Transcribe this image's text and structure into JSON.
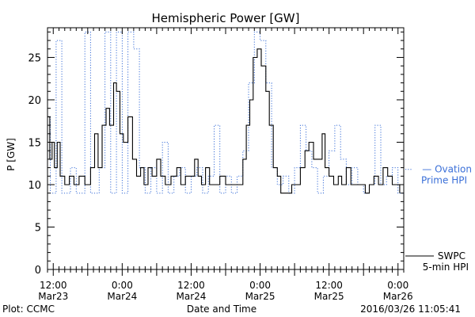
{
  "footer": {
    "plot_credit": "Plot: CCMC",
    "timestamp": "2016/03/26 11:05:41"
  },
  "chart_data": {
    "type": "line",
    "title": "Hemispheric Power [GW]",
    "xlabel": "Date and Time",
    "ylabel": "P [GW]",
    "ylim": [
      0,
      28.5
    ],
    "xlim": [
      -1,
      61
    ],
    "x_unit": "hours since 2016-03-23 12:00 UT",
    "yticks": [
      0,
      5,
      10,
      15,
      20,
      25
    ],
    "xticks": [
      {
        "x": 0,
        "label1": "12:00",
        "label2": "Mar23"
      },
      {
        "x": 12,
        "label1": "0:00",
        "label2": "Mar24"
      },
      {
        "x": 24,
        "label1": "12:00",
        "label2": "Mar24"
      },
      {
        "x": 36,
        "label1": "0:00",
        "label2": "Mar25"
      },
      {
        "x": 48,
        "label1": "12:00",
        "label2": "Mar25"
      },
      {
        "x": 60,
        "label1": "0:00",
        "label2": "Mar26"
      }
    ],
    "grid": false,
    "legend_placement": "right",
    "series": [
      {
        "name": "Ovation Prime HPI",
        "legend_lines": [
          "— Ovation",
          "Prime HPI"
        ],
        "color": "#3a6fd8",
        "style": "dotted",
        "points": [
          [
            -1,
            18
          ],
          [
            -0.5,
            9
          ],
          [
            0.5,
            27
          ],
          [
            1.5,
            9
          ],
          [
            3,
            12
          ],
          [
            4,
            9
          ],
          [
            5.5,
            28
          ],
          [
            6.5,
            9
          ],
          [
            8,
            12
          ],
          [
            9,
            28
          ],
          [
            10,
            9
          ],
          [
            11,
            28
          ],
          [
            12,
            9
          ],
          [
            13,
            28
          ],
          [
            14,
            26
          ],
          [
            15,
            12
          ],
          [
            16,
            9
          ],
          [
            17,
            12
          ],
          [
            18,
            9
          ],
          [
            19,
            15
          ],
          [
            20,
            9
          ],
          [
            21,
            11
          ],
          [
            22,
            12
          ],
          [
            23,
            9
          ],
          [
            24,
            11
          ],
          [
            25,
            12
          ],
          [
            26,
            9
          ],
          [
            27,
            11
          ],
          [
            28,
            17
          ],
          [
            29,
            9
          ],
          [
            30,
            11
          ],
          [
            31,
            9
          ],
          [
            32,
            11
          ],
          [
            33,
            14
          ],
          [
            34,
            22
          ],
          [
            35,
            28
          ],
          [
            36,
            27
          ],
          [
            37,
            22
          ],
          [
            38,
            12
          ],
          [
            39,
            10
          ],
          [
            40,
            11
          ],
          [
            41,
            9
          ],
          [
            42,
            12
          ],
          [
            43,
            17
          ],
          [
            44,
            14
          ],
          [
            45,
            12
          ],
          [
            46,
            9
          ],
          [
            47,
            11
          ],
          [
            48,
            14
          ],
          [
            49,
            17
          ],
          [
            50,
            13
          ],
          [
            51,
            10
          ],
          [
            52,
            12
          ],
          [
            53,
            10
          ],
          [
            54,
            9
          ],
          [
            55,
            10
          ],
          [
            56,
            17
          ],
          [
            57,
            10
          ],
          [
            58,
            11
          ],
          [
            59,
            12
          ],
          [
            60,
            9
          ],
          [
            61,
            10
          ]
        ]
      },
      {
        "name": "SWPC 5-min HPI",
        "legend_lines": [
          "SWPC",
          "5-min HPI"
        ],
        "color": "#000000",
        "style": "solid",
        "points": [
          [
            -1,
            18
          ],
          [
            -0.6,
            13
          ],
          [
            -0.2,
            15
          ],
          [
            0.2,
            12
          ],
          [
            0.7,
            15
          ],
          [
            1.2,
            11
          ],
          [
            2,
            10
          ],
          [
            2.8,
            11
          ],
          [
            3.6,
            10
          ],
          [
            4.5,
            11
          ],
          [
            5.5,
            10
          ],
          [
            6.5,
            12
          ],
          [
            7.2,
            16
          ],
          [
            7.8,
            12
          ],
          [
            8.5,
            17
          ],
          [
            9.2,
            19
          ],
          [
            9.8,
            17
          ],
          [
            10.5,
            22
          ],
          [
            11,
            21
          ],
          [
            11.6,
            16
          ],
          [
            12.2,
            15
          ],
          [
            13,
            18
          ],
          [
            13.8,
            13
          ],
          [
            14.5,
            11
          ],
          [
            15.2,
            12
          ],
          [
            15.8,
            10
          ],
          [
            16.5,
            12
          ],
          [
            17.2,
            11
          ],
          [
            18,
            13
          ],
          [
            18.7,
            11
          ],
          [
            19.5,
            10
          ],
          [
            20.5,
            11
          ],
          [
            21.5,
            12
          ],
          [
            22.2,
            10
          ],
          [
            23,
            11
          ],
          [
            24,
            11
          ],
          [
            24.6,
            13
          ],
          [
            25.2,
            11
          ],
          [
            25.8,
            10
          ],
          [
            26.5,
            12
          ],
          [
            27.2,
            10
          ],
          [
            28,
            10
          ],
          [
            29,
            11
          ],
          [
            30,
            10
          ],
          [
            31,
            10
          ],
          [
            32,
            10
          ],
          [
            33,
            13
          ],
          [
            33.6,
            17
          ],
          [
            34.2,
            20
          ],
          [
            34.8,
            25
          ],
          [
            35.5,
            26
          ],
          [
            36.2,
            24
          ],
          [
            37,
            21
          ],
          [
            37.6,
            17
          ],
          [
            38.3,
            12
          ],
          [
            39,
            11
          ],
          [
            39.6,
            9
          ],
          [
            40.6,
            9
          ],
          [
            41.5,
            10
          ],
          [
            42.2,
            10
          ],
          [
            43,
            12
          ],
          [
            43.8,
            14
          ],
          [
            44.5,
            15
          ],
          [
            45.3,
            13
          ],
          [
            46,
            13
          ],
          [
            46.8,
            16
          ],
          [
            47.3,
            12
          ],
          [
            48,
            11
          ],
          [
            48.8,
            10
          ],
          [
            49.6,
            11
          ],
          [
            50.2,
            10
          ],
          [
            51,
            12
          ],
          [
            51.8,
            10
          ],
          [
            52.6,
            10
          ],
          [
            53.5,
            10
          ],
          [
            54.3,
            9
          ],
          [
            55,
            10
          ],
          [
            55.8,
            11
          ],
          [
            56.6,
            10
          ],
          [
            57.4,
            12
          ],
          [
            58.2,
            11
          ],
          [
            59,
            10
          ],
          [
            59.6,
            10
          ],
          [
            60.3,
            9
          ]
        ]
      }
    ]
  }
}
